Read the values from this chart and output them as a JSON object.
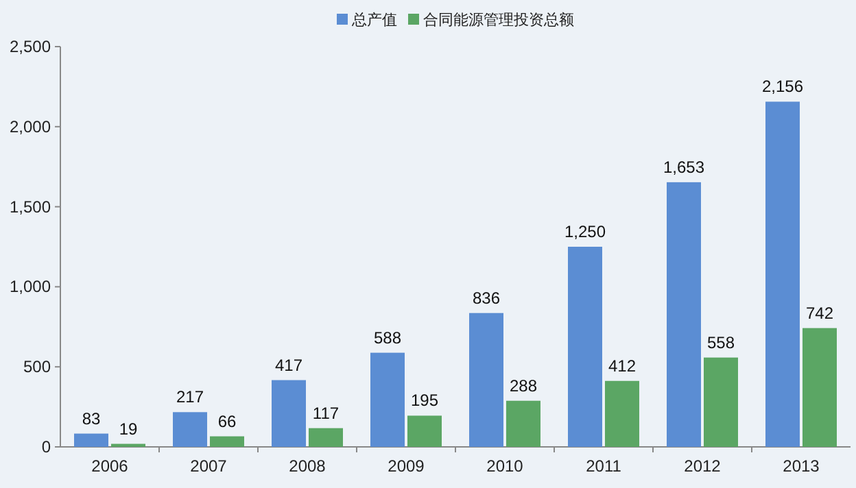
{
  "chart_data": {
    "type": "bar",
    "categories": [
      "2006",
      "2007",
      "2008",
      "2009",
      "2010",
      "2011",
      "2012",
      "2013"
    ],
    "series": [
      {
        "name": "总产值",
        "color": "#5b8dd3",
        "values": [
          83,
          217,
          417,
          588,
          836,
          1250,
          1653,
          2156
        ],
        "value_labels": [
          "83",
          "217",
          "417",
          "588",
          "836",
          "1,250",
          "1,653",
          "2,156"
        ]
      },
      {
        "name": "合同能源管理投资总额",
        "color": "#5ba664",
        "values": [
          19,
          66,
          117,
          195,
          288,
          412,
          558,
          742
        ],
        "value_labels": [
          "19",
          "66",
          "117",
          "195",
          "288",
          "412",
          "558",
          "742"
        ]
      }
    ],
    "ylim": [
      0,
      2500
    ],
    "yticks": [
      0,
      500,
      {
        "value": 1000,
        "label": "1,000"
      },
      {
        "value": 1500,
        "label": "1,500"
      },
      {
        "value": 2000,
        "label": "2,000"
      },
      {
        "value": 2500,
        "label": "2,500"
      }
    ],
    "legend": "top"
  }
}
